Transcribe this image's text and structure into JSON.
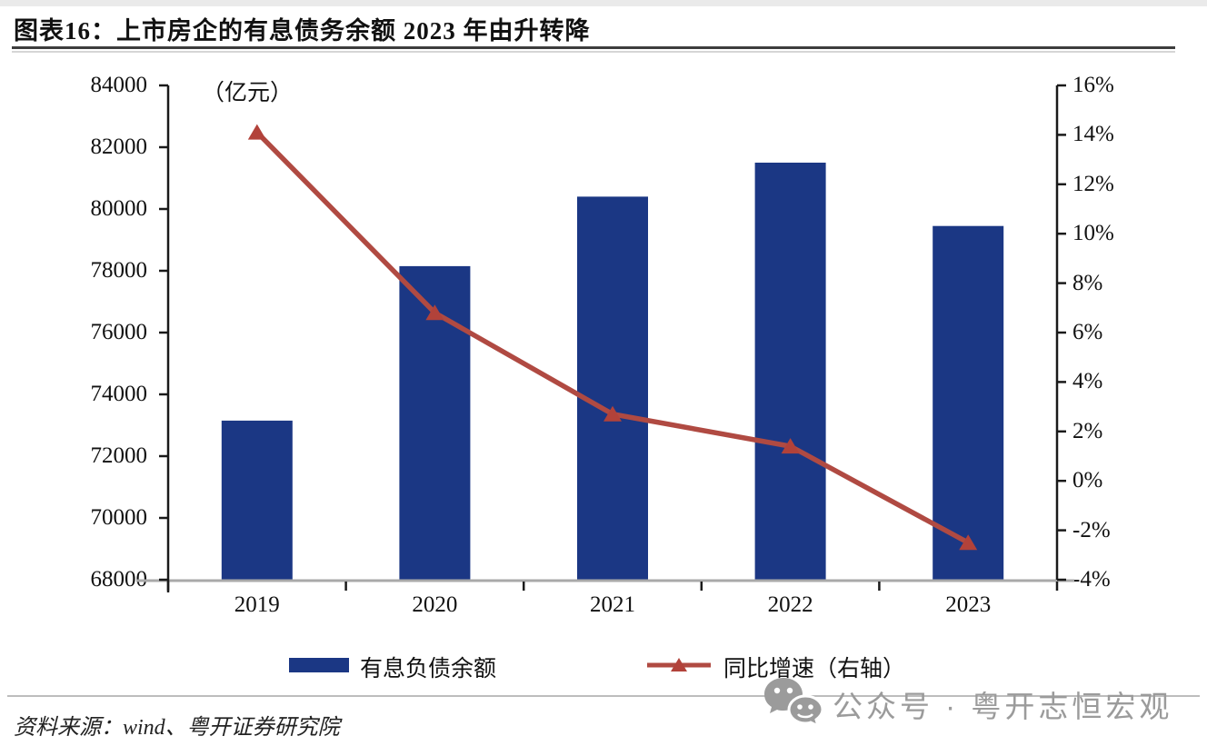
{
  "header": {
    "title": "图表16：上市房企的有息债务余额 2023 年由升转降"
  },
  "chart_data": {
    "type": "combo",
    "categories": [
      "2019",
      "2020",
      "2021",
      "2022",
      "2023"
    ],
    "series": [
      {
        "name": "有息负债余额",
        "type": "bar",
        "axis": "left",
        "values": [
          73150,
          78150,
          80400,
          81500,
          79450
        ],
        "color": "#1b3784"
      },
      {
        "name": "同比增速（右轴）",
        "type": "line",
        "axis": "right",
        "values": [
          14.1,
          6.8,
          2.7,
          1.4,
          -2.5
        ],
        "color": "#b04a42",
        "marker": "triangle"
      }
    ],
    "left_axis": {
      "unit_label": "（亿元）",
      "min": 68000,
      "max": 84000,
      "step": 2000,
      "tick_labels": [
        "84000",
        "82000",
        "80000",
        "78000",
        "76000",
        "74000",
        "72000",
        "70000",
        "68000"
      ]
    },
    "right_axis": {
      "min": -4,
      "max": 16,
      "step": 2,
      "tick_labels": [
        "16%",
        "14%",
        "12%",
        "10%",
        "8%",
        "6%",
        "4%",
        "2%",
        "0%",
        "-2%",
        "-4%"
      ]
    },
    "grid": false,
    "legend_position": "bottom"
  },
  "legend": {
    "items": [
      {
        "label": "有息负债余额",
        "swatch": "bar",
        "color": "#1b3784"
      },
      {
        "label": "同比增速（右轴）",
        "swatch": "line-triangle",
        "color": "#b04a42"
      }
    ]
  },
  "footer": {
    "source": "资料来源：wind、粤开证券研究院",
    "watermark": "公众号 · 粤开志恒宏观",
    "watermark_icon": "wechat-icon"
  },
  "colors": {
    "bar": "#1b3784",
    "line": "#b04a42",
    "axis": "#1a1a1a",
    "baseline": "#a9a9a9",
    "separator": "#bdbdbd",
    "watermark": "#9b9b9b"
  }
}
